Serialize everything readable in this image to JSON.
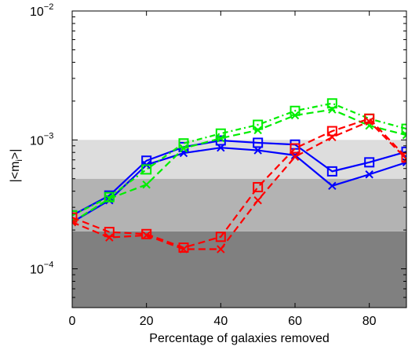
{
  "chart_data": {
    "type": "line",
    "xlabel": "Percentage of galaxies removed",
    "ylabel": "|<m_i>|",
    "ylabel_main": "|<m",
    "ylabel_sub": "i",
    "ylabel_end": ">|",
    "xlim": [
      0,
      90
    ],
    "ylim": [
      5e-05,
      0.01
    ],
    "y_scale": "log",
    "x_ticks": [
      0,
      20,
      40,
      60,
      80
    ],
    "x_tick_labels": [
      "0",
      "20",
      "40",
      "60",
      "80"
    ],
    "y_ticks": [
      0.0001,
      0.001,
      0.01
    ],
    "y_tick_labels": [
      {
        "base": "10",
        "exp": "−4"
      },
      {
        "base": "10",
        "exp": "−3"
      },
      {
        "base": "10",
        "exp": "−2"
      }
    ],
    "x": [
      0,
      10,
      20,
      30,
      40,
      50,
      60,
      70,
      80,
      90
    ],
    "bands": [
      {
        "from": 5e-05,
        "to": 0.000195,
        "color": "#808080"
      },
      {
        "from": 0.000195,
        "to": 0.0005,
        "color": "#b3b3b3"
      },
      {
        "from": 0.0005,
        "to": 0.001,
        "color": "#dddddd"
      }
    ],
    "series": [
      {
        "color": "#0000ff",
        "dash": "",
        "marker": "square",
        "values": [
          0.00026,
          0.00037,
          0.00069,
          0.00088,
          0.00099,
          0.00095,
          0.00092,
          0.00057,
          0.00067,
          0.00081
        ]
      },
      {
        "color": "#0000ff",
        "dash": "",
        "marker": "x",
        "values": [
          0.00023,
          0.00034,
          0.00064,
          0.00079,
          0.00087,
          0.00083,
          0.00076,
          0.00044,
          0.00054,
          0.00067
        ]
      },
      {
        "color": "#00ee00",
        "dash": "7 4 2 4",
        "marker": "square",
        "values": [
          0.00026,
          0.00036,
          0.00059,
          0.00094,
          0.00112,
          0.00131,
          0.00168,
          0.00192,
          0.00146,
          0.00122
        ]
      },
      {
        "color": "#00ee00",
        "dash": "9 5",
        "marker": "x",
        "values": [
          0.00023,
          0.00035,
          0.00045,
          0.00086,
          0.00103,
          0.00119,
          0.00155,
          0.00172,
          0.00129,
          0.00109
        ]
      },
      {
        "color": "#ff0000",
        "dash": "9 5",
        "marker": "square",
        "values": [
          0.00025,
          0.000193,
          0.000186,
          0.000146,
          0.000177,
          0.00043,
          0.00086,
          0.00117,
          0.00146,
          0.00073
        ]
      },
      {
        "color": "#ff0000",
        "dash": "9 5",
        "marker": "x",
        "values": [
          0.00023,
          0.000175,
          0.000182,
          0.000142,
          0.000142,
          0.00034,
          0.00074,
          0.00105,
          0.00139,
          0.00071
        ]
      }
    ]
  }
}
